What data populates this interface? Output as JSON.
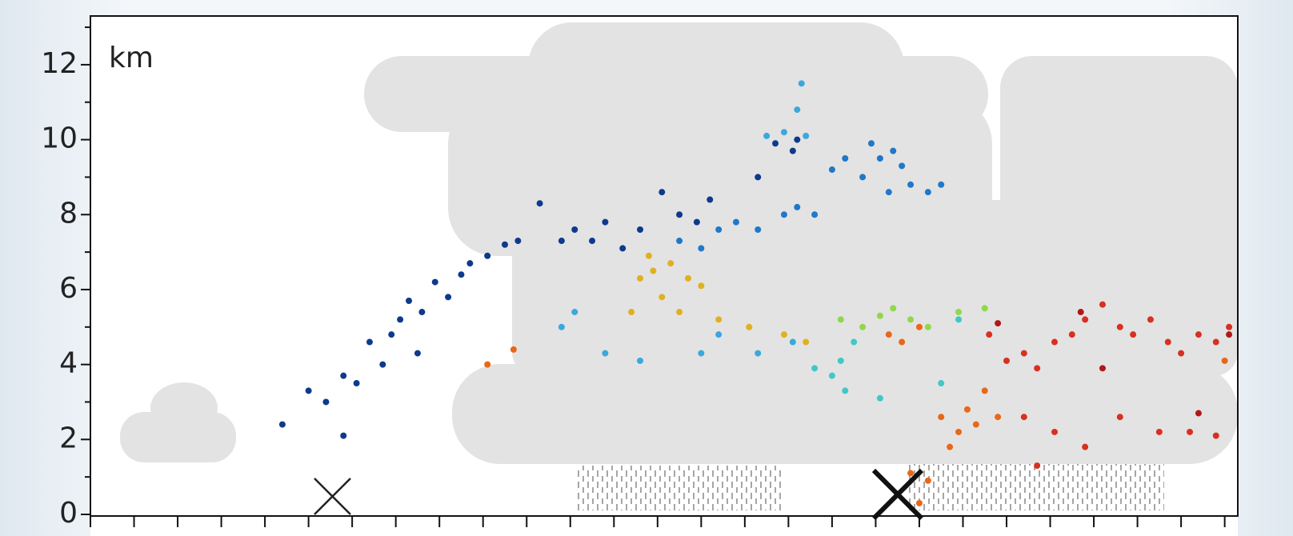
{
  "chart_data": {
    "type": "scatter",
    "y_label": "km",
    "xlim": [
      0,
      26.3
    ],
    "ylim": [
      0,
      13.3
    ],
    "xticks": [
      0,
      1,
      2,
      3,
      4,
      5,
      6,
      7,
      8,
      9,
      10,
      11,
      12,
      13,
      14,
      15,
      16,
      17,
      18,
      19,
      20,
      21,
      22,
      23,
      24,
      25,
      26
    ],
    "yticks": [
      0,
      2,
      4,
      6,
      8,
      10,
      12
    ],
    "y_minor_ticks": [
      1,
      3,
      5,
      7,
      9,
      11,
      13
    ],
    "series": [
      {
        "name": null,
        "color": "#0d3a8c",
        "x": [
          4.4,
          5.0,
          5.4,
          5.8,
          5.8,
          6.1,
          6.4,
          6.7,
          6.9,
          7.1,
          7.3,
          7.5,
          7.6,
          7.9,
          8.2,
          8.5,
          8.7,
          9.1,
          9.5,
          9.8,
          10.3,
          10.8,
          11.1,
          11.5,
          11.8,
          12.2,
          12.6,
          13.1,
          13.5,
          13.9,
          14.2,
          15.3,
          15.7,
          16.1,
          16.2
        ],
        "values": [
          2.4,
          3.3,
          3.0,
          3.7,
          2.1,
          3.5,
          4.6,
          4.0,
          4.8,
          5.2,
          5.7,
          4.3,
          5.4,
          6.2,
          5.8,
          6.4,
          6.7,
          6.9,
          7.2,
          7.3,
          8.3,
          7.3,
          7.6,
          7.3,
          7.8,
          7.1,
          7.6,
          8.6,
          8.0,
          7.8,
          8.4,
          9.0,
          9.9,
          9.7,
          10.0
        ]
      },
      {
        "name": null,
        "color": "#1f78c8",
        "x": [
          13.5,
          14.0,
          14.4,
          14.8,
          15.3,
          15.9,
          16.2,
          16.6,
          17.0,
          17.3,
          17.7,
          18.1,
          18.4,
          18.8,
          19.2,
          19.5,
          18.3,
          17.9,
          18.6
        ],
        "values": [
          7.3,
          7.1,
          7.6,
          7.8,
          7.6,
          8.0,
          8.2,
          8.0,
          9.2,
          9.5,
          9.0,
          9.5,
          9.7,
          8.8,
          8.6,
          8.8,
          8.6,
          9.9,
          9.3
        ]
      },
      {
        "name": null,
        "color": "#3aa8dc",
        "x": [
          15.5,
          15.9,
          16.2,
          16.3,
          16.4,
          10.8,
          11.1,
          11.8,
          12.6,
          14.0,
          14.4,
          15.3,
          16.1
        ],
        "values": [
          10.1,
          10.2,
          10.8,
          11.5,
          10.1,
          5.0,
          5.4,
          4.3,
          4.1,
          4.3,
          4.8,
          4.3,
          4.6
        ]
      },
      {
        "name": null,
        "color": "#40c8c8",
        "x": [
          17.0,
          17.3,
          17.2,
          17.5,
          18.1,
          19.5,
          19.9,
          16.6
        ],
        "values": [
          3.7,
          3.3,
          4.1,
          4.6,
          3.1,
          3.5,
          5.2,
          3.9
        ]
      },
      {
        "name": null,
        "color": "#e0b020",
        "x": [
          12.6,
          12.9,
          13.3,
          13.7,
          14.0,
          13.1,
          13.5,
          14.4,
          15.1,
          15.9,
          16.4,
          12.4,
          12.8
        ],
        "values": [
          6.3,
          6.5,
          6.7,
          6.3,
          6.1,
          5.8,
          5.4,
          5.2,
          5.0,
          4.8,
          4.6,
          5.4,
          6.9
        ]
      },
      {
        "name": null,
        "color": "#90d848",
        "x": [
          17.2,
          17.7,
          18.1,
          18.4,
          18.8,
          19.2,
          19.9,
          20.5
        ],
        "values": [
          5.2,
          5.0,
          5.3,
          5.5,
          5.2,
          5.0,
          5.4,
          5.5
        ]
      },
      {
        "name": null,
        "color": "#e86818",
        "x": [
          18.3,
          18.6,
          19.0,
          19.5,
          19.7,
          19.9,
          20.1,
          20.3,
          19.2,
          19.0,
          18.8,
          20.5,
          20.8,
          26.0,
          9.7,
          9.1
        ],
        "values": [
          4.8,
          4.6,
          5.0,
          2.6,
          1.8,
          2.2,
          2.8,
          2.4,
          0.9,
          0.3,
          1.1,
          3.3,
          2.6,
          4.1,
          4.4,
          4.0
        ]
      },
      {
        "name": null,
        "color": "#d83020",
        "x": [
          20.6,
          21.0,
          21.4,
          21.7,
          22.1,
          22.5,
          22.8,
          23.2,
          23.6,
          23.9,
          24.3,
          24.7,
          25.0,
          25.4,
          25.8,
          26.1,
          21.4,
          22.1,
          22.8,
          23.6,
          24.5,
          25.2,
          25.8,
          21.7
        ],
        "values": [
          4.8,
          4.1,
          4.3,
          3.9,
          4.6,
          4.8,
          5.2,
          5.6,
          5.0,
          4.8,
          5.2,
          4.6,
          4.3,
          4.8,
          4.6,
          5.0,
          2.6,
          2.2,
          1.8,
          2.6,
          2.2,
          2.2,
          2.1,
          1.3
        ]
      },
      {
        "name": null,
        "color": "#b01818",
        "x": [
          20.8,
          22.7,
          23.2,
          25.4,
          26.1
        ],
        "values": [
          5.1,
          5.4,
          3.9,
          2.7,
          4.8
        ]
      }
    ]
  }
}
